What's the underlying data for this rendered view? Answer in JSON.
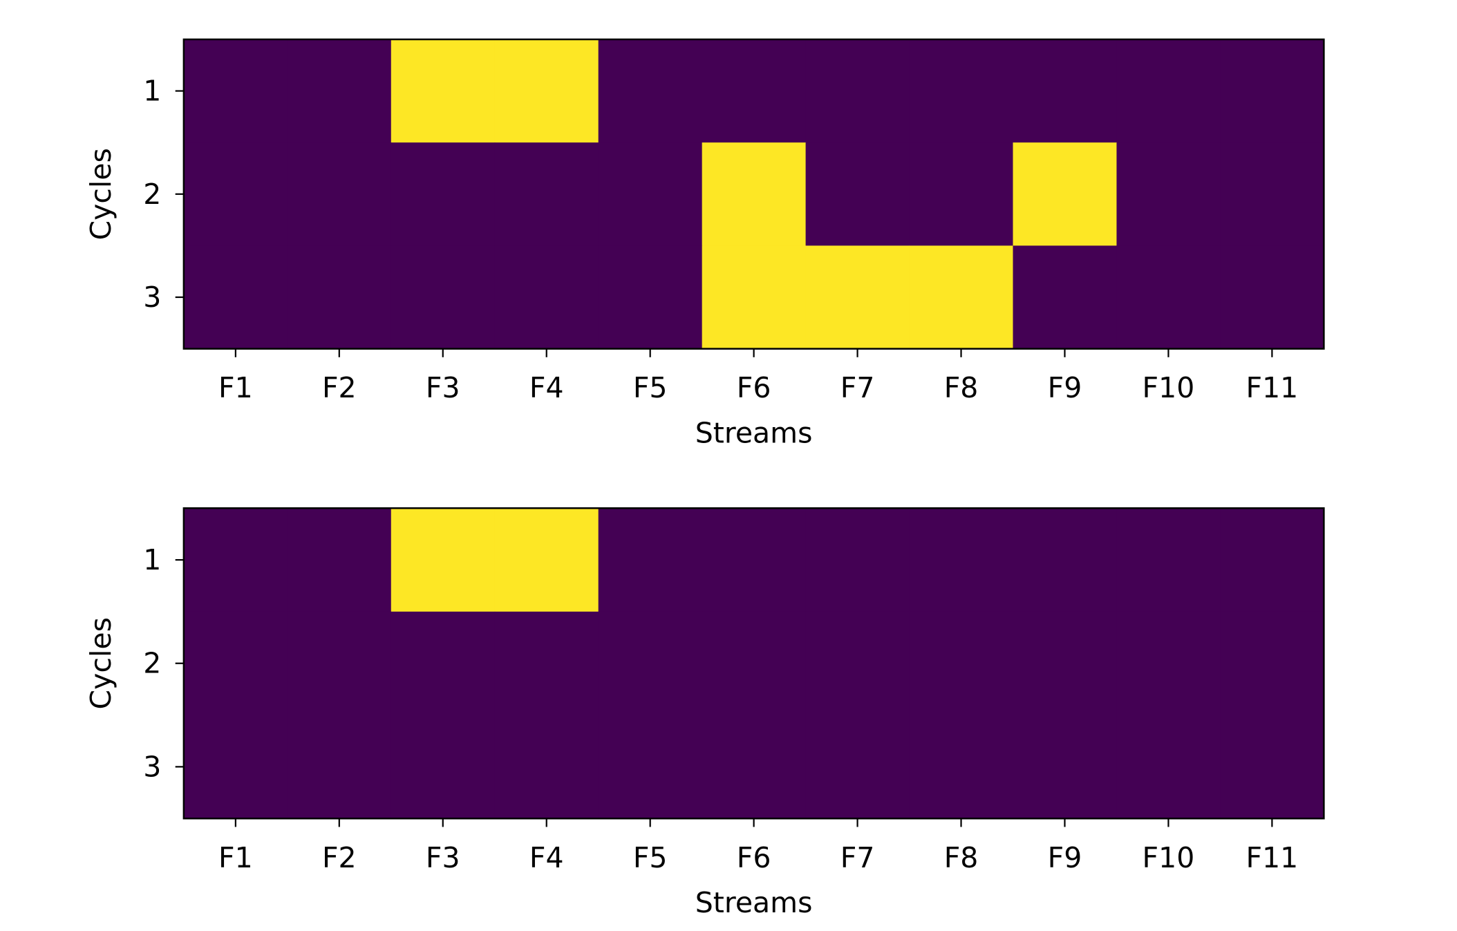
{
  "chart_data": [
    {
      "type": "heatmap",
      "xlabel": "Streams",
      "ylabel": "Cycles",
      "x_categories": [
        "F1",
        "F2",
        "F3",
        "F4",
        "F5",
        "F6",
        "F7",
        "F8",
        "F9",
        "F10",
        "F11"
      ],
      "y_categories": [
        "1",
        "2",
        "3"
      ],
      "values": [
        [
          0,
          0,
          1,
          1,
          0,
          0,
          0,
          0,
          0,
          0,
          0
        ],
        [
          0,
          0,
          0,
          0,
          0,
          1,
          0,
          0,
          1,
          0,
          0
        ],
        [
          0,
          0,
          0,
          0,
          0,
          1,
          1,
          1,
          0,
          0,
          0
        ]
      ],
      "colormap": {
        "low": "#440154",
        "high": "#fde725"
      },
      "grid": false,
      "legend": "none"
    },
    {
      "type": "heatmap",
      "xlabel": "Streams",
      "ylabel": "Cycles",
      "x_categories": [
        "F1",
        "F2",
        "F3",
        "F4",
        "F5",
        "F6",
        "F7",
        "F8",
        "F9",
        "F10",
        "F11"
      ],
      "y_categories": [
        "1",
        "2",
        "3"
      ],
      "values": [
        [
          0,
          0,
          1,
          1,
          0,
          0,
          0,
          0,
          0,
          0,
          0
        ],
        [
          0,
          0,
          0,
          0,
          0,
          0,
          0,
          0,
          0,
          0,
          0
        ],
        [
          0,
          0,
          0,
          0,
          0,
          0,
          0,
          0,
          0,
          0,
          0
        ]
      ],
      "colormap": {
        "low": "#440154",
        "high": "#fde725"
      },
      "grid": false,
      "legend": "none"
    }
  ]
}
